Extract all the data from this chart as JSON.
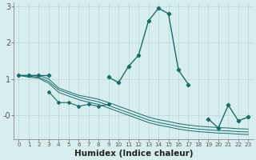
{
  "xlabel": "Humidex (Indice chaleur)",
  "bg_color": "#d8eeee",
  "line_color": "#1a6b6b",
  "grid_color": "#b8d8d8",
  "ylim": [
    -0.65,
    3.1
  ],
  "xlim": [
    -0.5,
    23.5
  ],
  "yticks": [
    0,
    1,
    2,
    3
  ],
  "ytick_labels": [
    "-0",
    "1",
    "2",
    "3"
  ],
  "x": [
    0,
    1,
    2,
    3,
    4,
    5,
    6,
    7,
    8,
    9,
    10,
    11,
    12,
    13,
    14,
    15,
    16,
    17,
    18,
    19,
    20,
    21,
    22,
    23
  ],
  "main_line": [
    1.1,
    1.1,
    1.1,
    1.1,
    null,
    null,
    null,
    null,
    null,
    1.05,
    0.9,
    1.35,
    1.65,
    2.6,
    2.95,
    2.8,
    1.25,
    0.85,
    null,
    null,
    null,
    null,
    null,
    null
  ],
  "zigzag": [
    null,
    null,
    null,
    0.65,
    0.35,
    0.35,
    0.25,
    0.3,
    0.25,
    0.3,
    null,
    null,
    null,
    null,
    null,
    null,
    null,
    null,
    null,
    null,
    null,
    null,
    null,
    null
  ],
  "right_part": [
    null,
    null,
    null,
    null,
    null,
    null,
    null,
    null,
    null,
    null,
    null,
    null,
    null,
    null,
    null,
    null,
    null,
    null,
    null,
    -0.1,
    -0.35,
    0.28,
    -0.15,
    -0.05
  ],
  "line_a": [
    1.1,
    1.1,
    1.1,
    1.0,
    0.75,
    0.65,
    0.55,
    0.5,
    0.44,
    0.35,
    0.25,
    0.15,
    0.05,
    -0.05,
    -0.12,
    -0.17,
    -0.23,
    -0.27,
    -0.3,
    -0.32,
    -0.34,
    -0.35,
    -0.37,
    -0.38
  ],
  "line_b": [
    1.1,
    1.08,
    1.05,
    0.93,
    0.7,
    0.6,
    0.5,
    0.43,
    0.37,
    0.27,
    0.17,
    0.07,
    -0.03,
    -0.13,
    -0.2,
    -0.25,
    -0.31,
    -0.35,
    -0.38,
    -0.4,
    -0.42,
    -0.43,
    -0.45,
    -0.46
  ],
  "line_c": [
    1.1,
    1.05,
    1.02,
    0.88,
    0.63,
    0.53,
    0.43,
    0.36,
    0.3,
    0.2,
    0.1,
    0.0,
    -0.1,
    -0.2,
    -0.27,
    -0.32,
    -0.38,
    -0.42,
    -0.45,
    -0.47,
    -0.49,
    -0.5,
    -0.52,
    -0.53
  ]
}
